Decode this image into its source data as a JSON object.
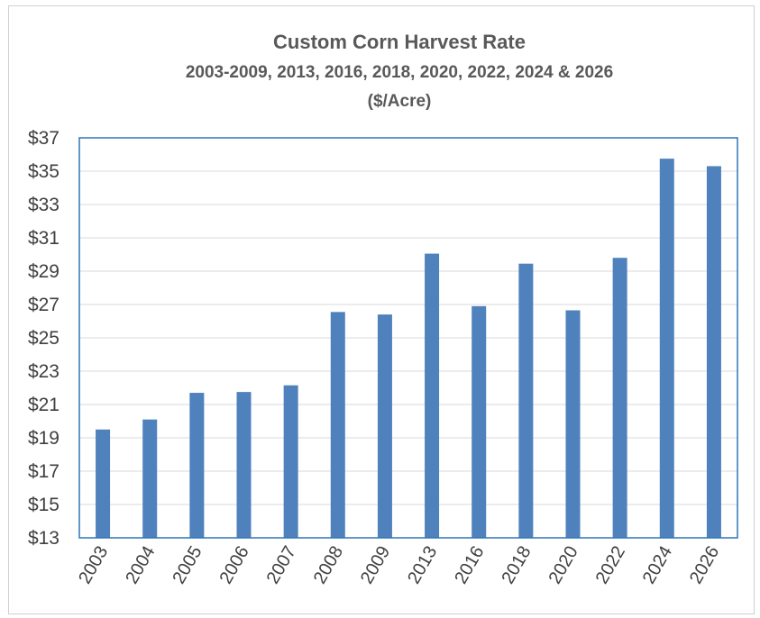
{
  "chart_data": {
    "type": "bar",
    "title": "Custom Corn Harvest Rate",
    "subtitle": "2003-2009, 2013, 2016, 2018, 2020, 2022, 2024 & 2026",
    "unit_line": "($/Acre)",
    "xlabel": "",
    "ylabel": "",
    "categories": [
      "2003",
      "2004",
      "2005",
      "2006",
      "2007",
      "2008",
      "2009",
      "2013",
      "2016",
      "2018",
      "2020",
      "2022",
      "2024",
      "2026"
    ],
    "values": [
      19.5,
      20.1,
      21.7,
      21.75,
      22.15,
      26.55,
      26.4,
      30.05,
      26.9,
      29.45,
      26.65,
      29.8,
      35.75,
      35.3
    ],
    "ylim": [
      13,
      37
    ],
    "yticks": [
      13,
      15,
      17,
      19,
      21,
      23,
      25,
      27,
      29,
      31,
      33,
      35,
      37
    ],
    "ytick_labels": [
      "$13",
      "$15",
      "$17",
      "$19",
      "$21",
      "$23",
      "$25",
      "$27",
      "$29",
      "$31",
      "$33",
      "$35",
      "$37"
    ],
    "grid": true,
    "legend": "none",
    "colors": {
      "bar": "#4f81bd",
      "plot_border": "#2e75b6",
      "grid": "#d9d9d9"
    }
  }
}
